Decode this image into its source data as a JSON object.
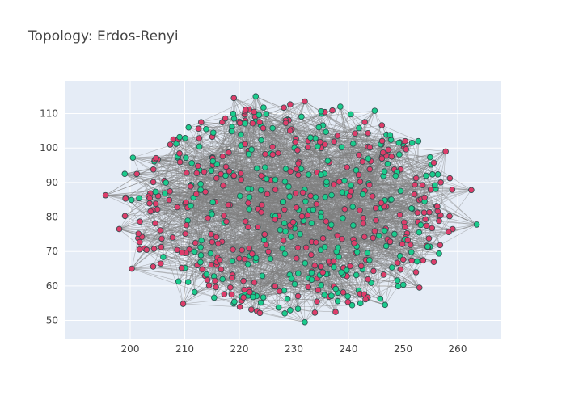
{
  "chart_data": {
    "type": "network",
    "title": "Topology: Erdos-Renyi",
    "xlabel": "",
    "ylabel": "",
    "xlim": [
      188,
      268
    ],
    "ylim": [
      44.5,
      119.5
    ],
    "x_ticks": [
      200,
      210,
      220,
      230,
      240,
      250,
      260
    ],
    "y_ticks": [
      50,
      60,
      70,
      80,
      90,
      100,
      110
    ],
    "grid": true,
    "legend": "none",
    "colors": {
      "plot_bg": "#E5ECF6",
      "grid": "#ffffff",
      "edge": "#808080",
      "node_red": "#DD3D6A",
      "node_green": "#1BCB8C",
      "node_outline": "#2F4F4F"
    },
    "node_count": 620,
    "ellipse_center": [
      229.5,
      82
    ],
    "ellipse_radius": [
      32,
      32
    ],
    "node_groups": [
      "red",
      "green"
    ],
    "nodes": [
      {
        "x": 195.5,
        "y": 86.3,
        "group": "red"
      },
      {
        "x": 198.0,
        "y": 76.5,
        "group": "red"
      },
      {
        "x": 199.0,
        "y": 92.5,
        "group": "green"
      },
      {
        "x": 200.3,
        "y": 65.0,
        "group": "red"
      },
      {
        "x": 200.5,
        "y": 97.2,
        "group": "green"
      },
      {
        "x": 209.7,
        "y": 54.8,
        "group": "red"
      },
      {
        "x": 213.0,
        "y": 107.5,
        "group": "red"
      },
      {
        "x": 219.0,
        "y": 114.5,
        "group": "red"
      },
      {
        "x": 223.0,
        "y": 115.0,
        "group": "green"
      },
      {
        "x": 232.0,
        "y": 49.5,
        "group": "green"
      },
      {
        "x": 232.0,
        "y": 113.5,
        "group": "red"
      },
      {
        "x": 238.5,
        "y": 112.0,
        "group": "green"
      },
      {
        "x": 244.8,
        "y": 110.8,
        "group": "green"
      },
      {
        "x": 246.7,
        "y": 54.5,
        "group": "green"
      },
      {
        "x": 252.8,
        "y": 102.0,
        "group": "green"
      },
      {
        "x": 253.0,
        "y": 59.5,
        "group": "red"
      },
      {
        "x": 257.8,
        "y": 99.0,
        "group": "red"
      },
      {
        "x": 262.5,
        "y": 87.8,
        "group": "red"
      },
      {
        "x": 263.5,
        "y": 77.8,
        "group": "green"
      }
    ]
  }
}
